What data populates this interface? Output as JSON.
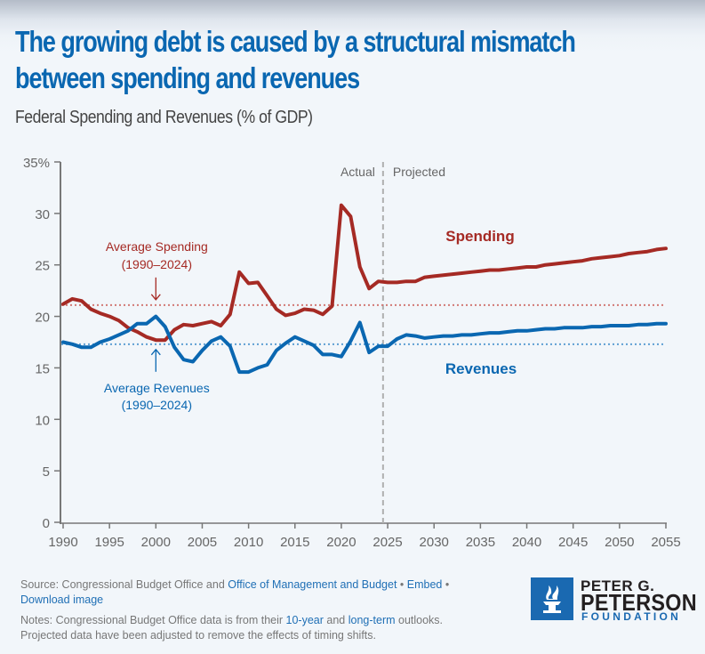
{
  "header": {
    "title_line1": "The growing debt is caused by a structural mismatch",
    "title_line2": "between spending and revenues",
    "subtitle": "Federal Spending and Revenues (% of GDP)"
  },
  "chart_data": {
    "type": "line",
    "title": "Federal Spending and Revenues (% of GDP)",
    "xlabel": "",
    "ylabel": "",
    "xlim": [
      1990,
      2055
    ],
    "ylim": [
      0,
      35
    ],
    "x_ticks": [
      "1990",
      "1995",
      "2000",
      "2005",
      "2010",
      "2015",
      "2020",
      "2025",
      "2030",
      "2035",
      "2040",
      "2045",
      "2050",
      "2055"
    ],
    "y_ticks": [
      "0",
      "5",
      "10",
      "15",
      "20",
      "25",
      "30",
      "35%"
    ],
    "y_tick_values": [
      0,
      5,
      10,
      15,
      20,
      25,
      30,
      35
    ],
    "grid": false,
    "divider": {
      "x": 2024.5,
      "left_label": "Actual",
      "right_label": "Projected"
    },
    "series": [
      {
        "name": "Spending",
        "color": "#a52a24",
        "average": 21.1,
        "average_label_line1": "Average Spending",
        "average_label_line2": "(1990–2024)",
        "x": [
          1990,
          1991,
          1992,
          1993,
          1994,
          1995,
          1996,
          1997,
          1998,
          1999,
          2000,
          2001,
          2002,
          2003,
          2004,
          2005,
          2006,
          2007,
          2008,
          2009,
          2010,
          2011,
          2012,
          2013,
          2014,
          2015,
          2016,
          2017,
          2018,
          2019,
          2020,
          2021,
          2022,
          2023,
          2024,
          2025,
          2026,
          2027,
          2028,
          2029,
          2030,
          2031,
          2032,
          2033,
          2034,
          2035,
          2036,
          2037,
          2038,
          2039,
          2040,
          2041,
          2042,
          2043,
          2044,
          2045,
          2046,
          2047,
          2048,
          2049,
          2050,
          2051,
          2052,
          2053,
          2054,
          2055
        ],
        "values": [
          21.2,
          21.7,
          21.5,
          20.7,
          20.3,
          20.0,
          19.6,
          18.9,
          18.5,
          18.0,
          17.7,
          17.7,
          18.7,
          19.2,
          19.1,
          19.3,
          19.5,
          19.1,
          20.2,
          24.3,
          23.2,
          23.3,
          22.0,
          20.7,
          20.1,
          20.3,
          20.7,
          20.6,
          20.2,
          21.0,
          30.8,
          29.7,
          24.8,
          22.7,
          23.4,
          23.3,
          23.3,
          23.4,
          23.4,
          23.8,
          23.9,
          24.0,
          24.1,
          24.2,
          24.3,
          24.4,
          24.5,
          24.5,
          24.6,
          24.7,
          24.8,
          24.8,
          25.0,
          25.1,
          25.2,
          25.3,
          25.4,
          25.6,
          25.7,
          25.8,
          25.9,
          26.1,
          26.2,
          26.3,
          26.5,
          26.6
        ]
      },
      {
        "name": "Revenues",
        "color": "#0a67b1",
        "average": 17.3,
        "average_label_line1": "Average Revenues",
        "average_label_line2": "(1990–2024)",
        "x": [
          1990,
          1991,
          1992,
          1993,
          1994,
          1995,
          1996,
          1997,
          1998,
          1999,
          2000,
          2001,
          2002,
          2003,
          2004,
          2005,
          2006,
          2007,
          2008,
          2009,
          2010,
          2011,
          2012,
          2013,
          2014,
          2015,
          2016,
          2017,
          2018,
          2019,
          2020,
          2021,
          2022,
          2023,
          2024,
          2025,
          2026,
          2027,
          2028,
          2029,
          2030,
          2031,
          2032,
          2033,
          2034,
          2035,
          2036,
          2037,
          2038,
          2039,
          2040,
          2041,
          2042,
          2043,
          2044,
          2045,
          2046,
          2047,
          2048,
          2049,
          2050,
          2051,
          2052,
          2053,
          2054,
          2055
        ],
        "values": [
          17.5,
          17.3,
          17.0,
          17.0,
          17.5,
          17.8,
          18.2,
          18.6,
          19.3,
          19.3,
          20.0,
          19.0,
          17.0,
          15.8,
          15.6,
          16.7,
          17.6,
          18.0,
          17.1,
          14.6,
          14.6,
          15.0,
          15.3,
          16.7,
          17.4,
          18.0,
          17.6,
          17.2,
          16.3,
          16.3,
          16.1,
          17.6,
          19.4,
          16.5,
          17.1,
          17.1,
          17.8,
          18.2,
          18.1,
          17.9,
          18.0,
          18.1,
          18.1,
          18.2,
          18.2,
          18.3,
          18.4,
          18.4,
          18.5,
          18.6,
          18.6,
          18.7,
          18.8,
          18.8,
          18.9,
          18.9,
          18.9,
          19.0,
          19.0,
          19.1,
          19.1,
          19.1,
          19.2,
          19.2,
          19.3,
          19.3
        ]
      }
    ]
  },
  "footer": {
    "source_prefix": "Source: Congressional Budget Office and ",
    "source_link": "Office of Management and Budget",
    "separator": " • ",
    "embed_link": "Embed",
    "download_link": "Download image",
    "notes_prefix": "Notes: Congressional Budget Office data is from their ",
    "notes_link1": "10-year",
    "notes_mid": " and ",
    "notes_link2": "long-term",
    "notes_suffix": " outlooks.",
    "notes_line2": "Projected data have been adjusted to remove the effects of timing shifts."
  },
  "logo": {
    "line1": "PETER G.",
    "line2": "PETERSON",
    "line3": "FOUNDATION",
    "brand_color": "#1a69b1"
  }
}
